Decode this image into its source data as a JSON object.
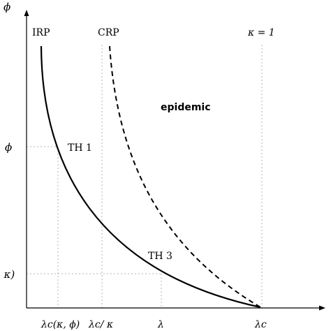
{
  "axes": {
    "y_label": "ϕ",
    "y_ticks": [
      {
        "label": "ϕ"
      },
      {
        "label": ", κ)"
      }
    ],
    "x_ticks": [
      {
        "label": "λc(κ, ϕ)"
      },
      {
        "label": "λc/ κ"
      },
      {
        "label": "λ"
      },
      {
        "label": "λc"
      }
    ]
  },
  "curve_labels": {
    "irp": "IRP",
    "crp": "CRP",
    "kappa_one": "κ = 1"
  },
  "annotations": {
    "th1": "TH 1",
    "th3": "TH 3",
    "region": "epidemic"
  },
  "curves": [
    {
      "name_ref": "irp",
      "style": "solid",
      "color": "#000000"
    },
    {
      "name_ref": "crp",
      "style": "dashed",
      "color": "#000000"
    }
  ],
  "guide_color": "#b5b5b5"
}
